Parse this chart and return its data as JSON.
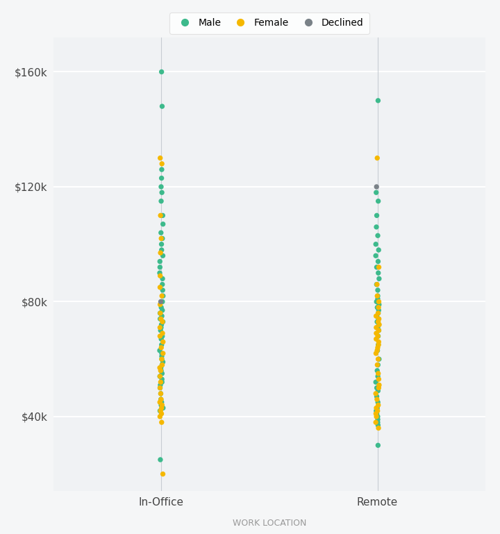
{
  "title": "",
  "xlabel": "WORK LOCATION",
  "ylabel": "",
  "background_color": "#f5f6f7",
  "plot_bg_color": "#f0f2f4",
  "grid_color": "#ffffff",
  "vline_color": "#c8cdd3",
  "colors": {
    "Male": "#3dba8c",
    "Female": "#f5b800",
    "Declined": "#7a8288"
  },
  "categories": [
    "In-Office",
    "Remote"
  ],
  "ylim": [
    14000,
    172000
  ],
  "yticks": [
    40000,
    80000,
    120000,
    160000
  ],
  "ytick_labels": [
    "$40k",
    "$80k",
    "$120k",
    "$160k"
  ],
  "in_office": {
    "male": [
      160000,
      148000,
      126000,
      123000,
      120000,
      118000,
      115000,
      110000,
      107000,
      104000,
      102000,
      100000,
      98000,
      96000,
      94000,
      92000,
      90000,
      88000,
      86000,
      84000,
      82000,
      80000,
      78000,
      77000,
      76000,
      75000,
      74000,
      73000,
      72000,
      71000,
      70000,
      68000,
      67000,
      65000,
      63000,
      62000,
      61000,
      60000,
      59000,
      58000,
      57000,
      56000,
      55000,
      54000,
      53000,
      52000,
      51000,
      50000,
      48000,
      46000,
      45000,
      44000,
      43000,
      42000,
      25000
    ],
    "female": [
      130000,
      128000,
      110000,
      102000,
      97000,
      89000,
      85000,
      82000,
      79000,
      76000,
      74000,
      73000,
      71000,
      69000,
      68000,
      66000,
      64000,
      62000,
      60000,
      58000,
      57000,
      56000,
      54000,
      52000,
      50000,
      48000,
      46000,
      45000,
      44000,
      43000,
      42000,
      41000,
      40000,
      38000,
      20000
    ],
    "declined": [
      80000
    ]
  },
  "remote": {
    "male": [
      150000,
      118000,
      115000,
      110000,
      106000,
      103000,
      100000,
      98000,
      96000,
      94000,
      92000,
      90000,
      88000,
      86000,
      84000,
      82000,
      81000,
      80000,
      79000,
      78000,
      77000,
      76000,
      75000,
      74000,
      73000,
      72000,
      71000,
      70000,
      68000,
      65000,
      63000,
      60000,
      58000,
      56000,
      54000,
      52000,
      50000,
      49000,
      47000,
      45000,
      43000,
      42000,
      41000,
      40000,
      39000,
      38000,
      37000,
      30000
    ],
    "female": [
      130000,
      92000,
      86000,
      82000,
      80000,
      78000,
      76000,
      75000,
      74000,
      73000,
      72000,
      71000,
      70000,
      69000,
      68000,
      67000,
      66000,
      65000,
      64000,
      63000,
      62000,
      60000,
      58000,
      55000,
      53000,
      51000,
      50000,
      48000,
      46000,
      44000,
      43000,
      42000,
      41000,
      40000,
      38000,
      36000
    ],
    "declined": [
      120000
    ]
  },
  "marker_size": 28,
  "jitter": 0.008,
  "legend_fontsize": 10,
  "tick_fontsize": 11,
  "xlabel_fontsize": 9,
  "xlabel_color": "#999999"
}
